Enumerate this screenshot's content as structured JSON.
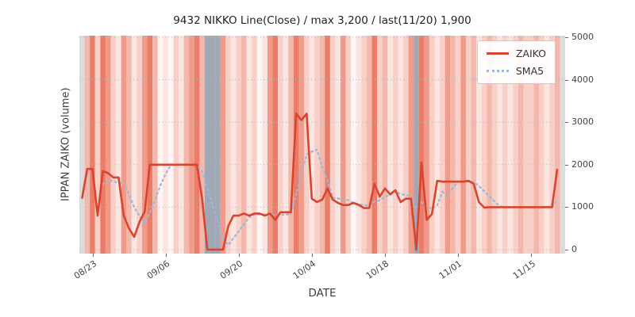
{
  "legend": {
    "zaiko": "ZAIKO",
    "sma5": "SMA5"
  },
  "colors": {
    "zaiko": "#d9442f",
    "sma5": "#9db7d8",
    "grid": "#b9b9b9",
    "tick_text": "#444444",
    "band_map": {
      "0": "#fdf6f4",
      "1": "#fbe5e0",
      "2": "#f8d0c8",
      "3": "#f4b7ab",
      "4": "#f09a8a",
      "5": "#eb7c68",
      "g": "#9fa8b4",
      "e": "#dcdcdc"
    }
  },
  "y_ticks": [
    0,
    1000,
    2000,
    3000,
    4000,
    5000
  ],
  "x_ticks": [
    {
      "label": "08/23",
      "index": 2
    },
    {
      "label": "09/06",
      "index": 16
    },
    {
      "label": "09/20",
      "index": 30
    },
    {
      "label": "10/04",
      "index": 44
    },
    {
      "label": "10/18",
      "index": 58
    },
    {
      "label": "11/01",
      "index": 72
    },
    {
      "label": "11/15",
      "index": 86
    }
  ],
  "chart_data": {
    "type": "line",
    "title": "9432 NIKKO Line(Close) / max 3,200 / last(11/20) 1,900",
    "xlabel": "DATE",
    "ylabel": "IPPAN ZAIKO (volume)",
    "ylim": [
      0,
      5000
    ],
    "max_value": 3200,
    "last_date": "11/20",
    "last_value": 1900,
    "x_dates": [
      "08/21",
      "08/22",
      "08/23",
      "08/24",
      "08/25",
      "08/26",
      "08/27",
      "08/28",
      "08/29",
      "08/30",
      "08/31",
      "09/01",
      "09/02",
      "09/03",
      "09/04",
      "09/05",
      "09/06",
      "09/07",
      "09/08",
      "09/09",
      "09/10",
      "09/11",
      "09/12",
      "09/13",
      "09/14",
      "09/15",
      "09/16",
      "09/17",
      "09/18",
      "09/19",
      "09/20",
      "09/21",
      "09/22",
      "09/23",
      "09/24",
      "09/25",
      "09/26",
      "09/27",
      "09/28",
      "09/29",
      "09/30",
      "10/01",
      "10/02",
      "10/03",
      "10/04",
      "10/05",
      "10/06",
      "10/07",
      "10/08",
      "10/09",
      "10/10",
      "10/11",
      "10/12",
      "10/13",
      "10/14",
      "10/15",
      "10/16",
      "10/17",
      "10/18",
      "10/19",
      "10/20",
      "10/21",
      "10/22",
      "10/23",
      "10/24",
      "10/25",
      "10/26",
      "10/27",
      "10/28",
      "10/29",
      "10/30",
      "10/31",
      "11/01",
      "11/02",
      "11/03",
      "11/04",
      "11/05",
      "11/06",
      "11/07",
      "11/08",
      "11/09",
      "11/10",
      "11/11",
      "11/12",
      "11/13",
      "11/14",
      "11/15",
      "11/16",
      "11/17",
      "11/18",
      "11/19",
      "11/20",
      "11/21"
    ],
    "series": [
      {
        "name": "ZAIKO",
        "values": [
          1200,
          1900,
          1900,
          800,
          1850,
          1800,
          1700,
          1700,
          800,
          500,
          300,
          650,
          900,
          2000,
          2000,
          2000,
          2000,
          2000,
          2000,
          2000,
          2000,
          2000,
          2000,
          1200,
          0,
          0,
          0,
          0,
          550,
          800,
          800,
          850,
          800,
          850,
          850,
          800,
          850,
          700,
          880,
          880,
          880,
          3200,
          3050,
          3200,
          1200,
          1120,
          1180,
          1440,
          1180,
          1100,
          1050,
          1050,
          1100,
          1050,
          980,
          980,
          1550,
          1250,
          1440,
          1300,
          1400,
          1120,
          1200,
          1200,
          0,
          2050,
          700,
          840,
          1620,
          1600,
          1600,
          1600,
          1600,
          1600,
          1620,
          1550,
          1120,
          990,
          1000,
          1000,
          1000,
          1000,
          1000,
          1000,
          1000,
          1000,
          1000,
          1000,
          1000,
          1000,
          1000,
          1900
        ]
      },
      {
        "name": "SMA5",
        "definition": "5-day moving average of ZAIKO (computed from ZAIKO values)"
      }
    ],
    "day_shades": [
      "e",
      "3",
      "5",
      "2",
      "5",
      "4",
      "2",
      "1",
      "4",
      "3",
      "1",
      "2",
      "4",
      "5",
      "3",
      "0",
      "1",
      "0",
      "2",
      "1",
      "3",
      "4",
      "5",
      "3",
      "g",
      "g",
      "g",
      "4",
      "2",
      "1",
      "2",
      "3",
      "1",
      "2",
      "0",
      "1",
      "4",
      "5",
      "2",
      "1",
      "3",
      "5",
      "4",
      "2",
      "1",
      "2",
      "3",
      "5",
      "2",
      "1",
      "4",
      "2",
      "0",
      "1",
      "2",
      "3",
      "5",
      "2",
      "3",
      "1",
      "2",
      "1",
      "2",
      "4",
      "g",
      "5",
      "4",
      "2",
      "1",
      "2",
      "4",
      "3",
      "2",
      "4",
      "2",
      "3",
      "1",
      "2",
      "3",
      "2",
      "1",
      "2",
      "1",
      "2",
      "3",
      "2",
      "2",
      "3",
      "2",
      "1",
      "2",
      "3",
      "e"
    ]
  }
}
